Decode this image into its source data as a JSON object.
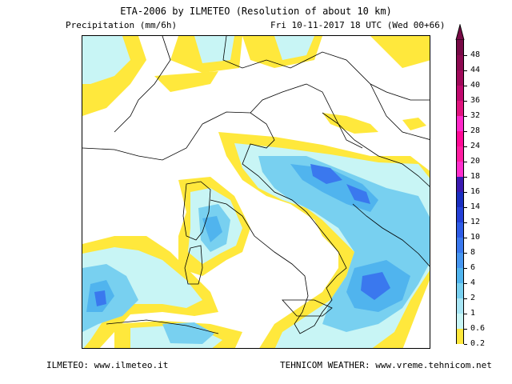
{
  "header": {
    "title": "ETA-2006 by ILMETEO (Resolution of about 10 km)",
    "variable": "Precipitation (mm/6h)",
    "valid_time": "Fri 10-11-2017 18 UTC (Wed 00+66)"
  },
  "footer": {
    "left": "ILMETEO: www.ilmeteo.it",
    "right": "TEHNICOM WEATHER: www.vreme.tehnicom.net"
  },
  "legend": {
    "levels": [
      {
        "label": "0.2",
        "color": "#ffe83c"
      },
      {
        "label": "0.6",
        "color": "#c8f5f5"
      },
      {
        "label": "1",
        "color": "#a8e6f5"
      },
      {
        "label": "2",
        "color": "#78d0f0"
      },
      {
        "label": "4",
        "color": "#50b4ee"
      },
      {
        "label": "6",
        "color": "#4696f0"
      },
      {
        "label": "8",
        "color": "#3a78ee"
      },
      {
        "label": "10",
        "color": "#2e5ce6"
      },
      {
        "label": "12",
        "color": "#2440d6"
      },
      {
        "label": "14",
        "color": "#1a2ec0"
      },
      {
        "label": "16",
        "color": "#3a1ab0"
      },
      {
        "label": "18",
        "color": "#ff2ecc"
      },
      {
        "label": "20",
        "color": "#ff1ea0"
      },
      {
        "label": "24",
        "color": "#ff0a96"
      },
      {
        "label": "28",
        "color": "#ff28c8"
      },
      {
        "label": "32",
        "color": "#e0147e"
      },
      {
        "label": "36",
        "color": "#c00a6e"
      },
      {
        "label": "40",
        "color": "#a00a5a"
      },
      {
        "label": "44",
        "color": "#8c0a50"
      },
      {
        "label": "48",
        "color": "#780a46"
      }
    ]
  },
  "colors": {
    "yellow": "#ffe83c",
    "cyan_light": "#c8f5f5",
    "cyan": "#8edcf0",
    "blue_mid": "#5ab4ee",
    "blue_dark": "#3a78ee",
    "blue_deep": "#2440d6",
    "border": "#000000"
  }
}
